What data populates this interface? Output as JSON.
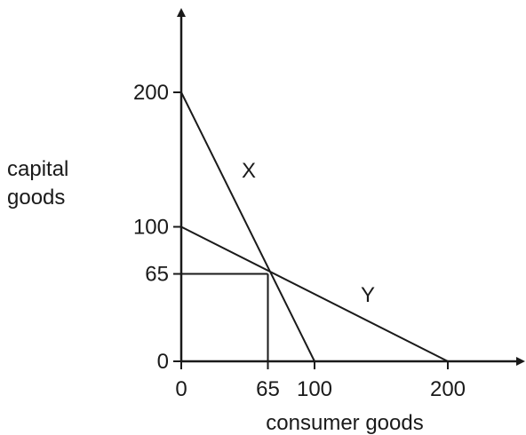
{
  "chart_data": {
    "type": "line",
    "title": "",
    "xlabel": "consumer goods",
    "ylabel_lines": [
      "capital",
      "goods"
    ],
    "xlim": [
      0,
      200
    ],
    "ylim": [
      0,
      200
    ],
    "x_ticks": [
      {
        "value": 0,
        "label": "0"
      },
      {
        "value": 65,
        "label": "65"
      },
      {
        "value": 100,
        "label": "100"
      },
      {
        "value": 200,
        "label": "200"
      }
    ],
    "y_ticks": [
      {
        "value": 0,
        "label": "0"
      },
      {
        "value": 65,
        "label": "65"
      },
      {
        "value": 100,
        "label": "100"
      },
      {
        "value": 200,
        "label": "200"
      }
    ],
    "series": [
      {
        "name": "X",
        "points": [
          [
            0,
            200
          ],
          [
            100,
            0
          ]
        ]
      },
      {
        "name": "Y",
        "points": [
          [
            0,
            100
          ],
          [
            200,
            0
          ]
        ]
      }
    ],
    "reference_point": {
      "x": 65,
      "y": 65
    },
    "grid": false,
    "line_color": "#1a1a1a"
  }
}
